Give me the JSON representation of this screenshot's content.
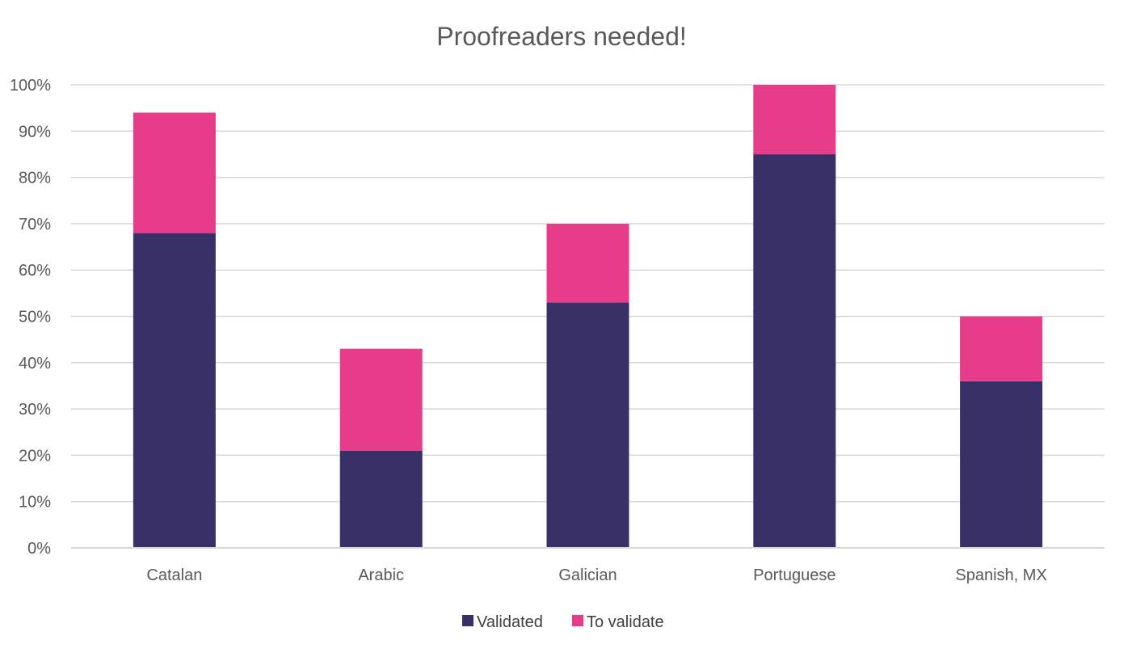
{
  "chart_data": {
    "type": "bar",
    "stacked": true,
    "title": "Proofreaders needed!",
    "xlabel": "",
    "ylabel": "",
    "categories": [
      "Catalan",
      "Arabic",
      "Galician",
      "Portuguese",
      "Spanish, MX"
    ],
    "series": [
      {
        "name": "Validated",
        "color": "#3a3068",
        "values": [
          68,
          21,
          53,
          85,
          36
        ]
      },
      {
        "name": "To validate",
        "color": "#e63c8a",
        "values": [
          26,
          22,
          17,
          15,
          14
        ]
      }
    ],
    "ylim": [
      0,
      100
    ],
    "yticks": [
      0,
      10,
      20,
      30,
      40,
      50,
      60,
      70,
      80,
      90,
      100
    ],
    "ytick_labels": [
      "0%",
      "10%",
      "20%",
      "30%",
      "40%",
      "50%",
      "60%",
      "70%",
      "80%",
      "90%",
      "100%"
    ],
    "grid": true,
    "legend_position": "bottom"
  }
}
